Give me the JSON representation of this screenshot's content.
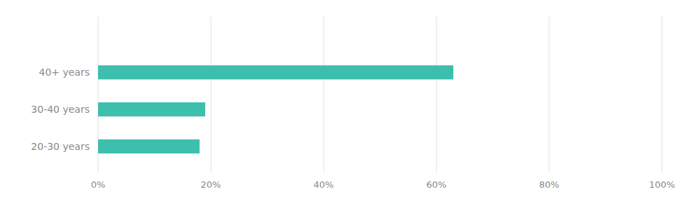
{
  "chart_data": {
    "type": "bar",
    "orientation": "horizontal",
    "categories": [
      "20-30 years",
      "30-40 years",
      "40+ years"
    ],
    "values": [
      18,
      19,
      63
    ],
    "color": "#3dbfad",
    "xlim": [
      0,
      100
    ],
    "xticks": [
      {
        "value": 0,
        "label": "0%"
      },
      {
        "value": 20,
        "label": "20%"
      },
      {
        "value": 40,
        "label": "40%"
      },
      {
        "value": 60,
        "label": "60%"
      },
      {
        "value": 80,
        "label": "80%"
      },
      {
        "value": 100,
        "label": "100%"
      }
    ],
    "grid": true
  }
}
